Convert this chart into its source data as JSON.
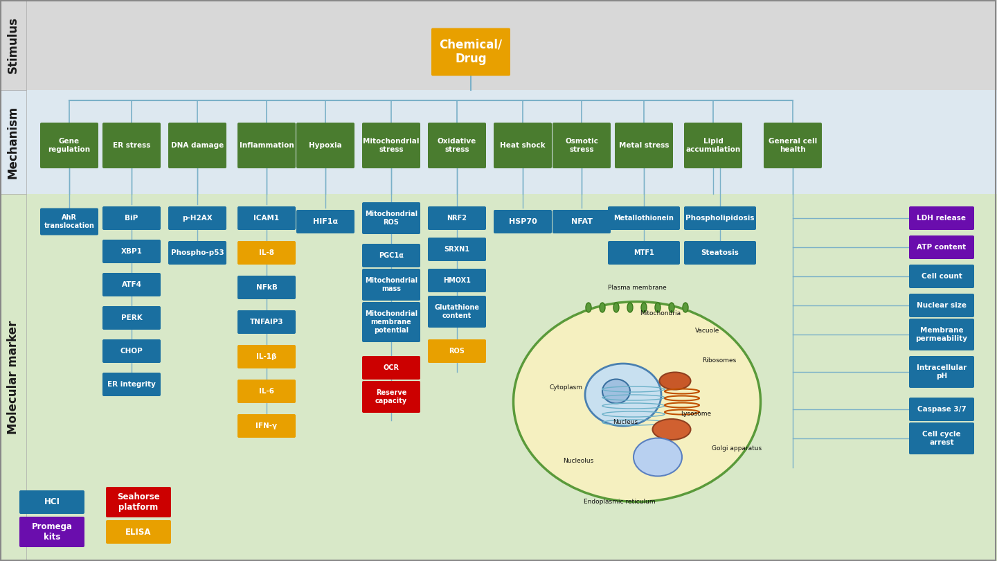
{
  "fig_width": 14.4,
  "fig_height": 8.1,
  "bg_outer": "#e8e8e8",
  "bg_stimulus": "#d8d8d8",
  "bg_mechanism": "#dde8f0",
  "bg_marker": "#d8e8c8",
  "label_bg": "#c8c8c8",
  "green_box": "#4a7c2f",
  "blue_box": "#1a6fa0",
  "yellow_box": "#e8a000",
  "red_box": "#cc0000",
  "purple_box": "#6a0dad",
  "chemical_drug_color": "#e8a000",
  "text_white": "#ffffff",
  "text_dark": "#1a1a1a",
  "sidebar_text_color": "#1a1a1a",
  "mechanism_labels": [
    "Gene\nregulation",
    "ER stress",
    "DNA damage",
    "Inflammation",
    "Hypoxia",
    "Mitochondrial\nstress",
    "Oxidative\nstress",
    "Heat shock",
    "Osmotic\nstress",
    "Metal stress",
    "Lipid\naccumulation",
    "General cell\nhealth"
  ],
  "gene_reg_markers": [
    "AhR\ntranslocation"
  ],
  "er_stress_markers": [
    "BiP",
    "XBP1",
    "ATF4",
    "PERK",
    "CHOP",
    "ER integrity"
  ],
  "dna_damage_markers": [
    "p-H2AX",
    "Phospho-p53"
  ],
  "inflammation_markers_blue": [
    "ICAM1",
    "NFkB",
    "TNFAIP3"
  ],
  "inflammation_markers_yellow": [
    "IL-8",
    "IL-1β",
    "IL-6",
    "IFN-γ"
  ],
  "hypoxia_markers": [
    "HIF1α"
  ],
  "mito_stress_markers_blue": [
    "Mitochondrial\nROS",
    "PGC1α",
    "Mitochondrial\nmass",
    "Mitochondrial\nmembrane\npotential"
  ],
  "mito_stress_markers_red": [
    "OCR",
    "Reserve\ncapacity"
  ],
  "oxidative_markers_blue": [
    "NRF2",
    "SRXN1",
    "HMOX1",
    "Glutathione\ncontent"
  ],
  "oxidative_markers_yellow": [
    "ROS"
  ],
  "heat_shock_markers": [
    "HSP70"
  ],
  "osmotic_markers": [
    "NFAT"
  ],
  "metal_markers": [
    "Metallothionein",
    "MTF1"
  ],
  "lipid_markers": [
    "Phospholipidosis",
    "Steatosis"
  ],
  "general_health_purple": [
    "LDH release",
    "ATP content"
  ],
  "general_health_blue": [
    "Cell count",
    "Nuclear size",
    "Membrane\npermeability",
    "Intracellular\npH",
    "Caspase 3/7",
    "Cell cycle\narrest"
  ],
  "legend_items": [
    {
      "label": "HCI",
      "color": "#1a6fa0"
    },
    {
      "label": "Seahorse\nplatform",
      "color": "#cc0000"
    },
    {
      "label": "Promega\nkits",
      "color": "#6a0dad"
    },
    {
      "label": "ELISA",
      "color": "#e8a000"
    }
  ]
}
